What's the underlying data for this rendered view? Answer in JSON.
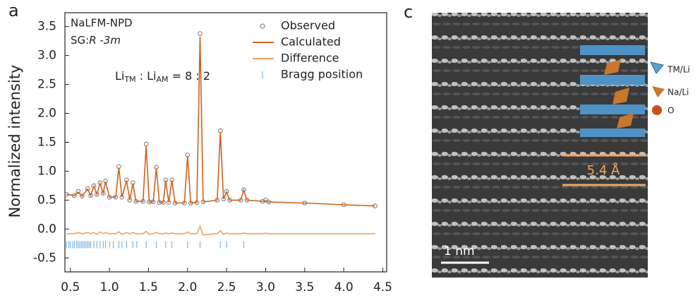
{
  "chart_data": {
    "type": "line",
    "panel_label": "a",
    "annotation_name": "NaLFM-NPD",
    "annotation_sg_prefix": "SG:",
    "annotation_sg": "R -3m",
    "annotation_ratio_parts": [
      "Li",
      "TM",
      " : Li",
      "AM",
      " = 8 : 2"
    ],
    "ylabel": "Normalized intensity",
    "xlim": [
      0.43,
      4.55
    ],
    "ylim": [
      -0.74,
      3.74
    ],
    "xticks": [
      0.5,
      {
        "value": 1,
        "label": "1.0"
      },
      1.5,
      {
        "value": 2,
        "label": "2.0"
      },
      2.5,
      {
        "value": 3,
        "label": "3.0"
      },
      3.5,
      {
        "value": 4,
        "label": "4.0"
      },
      4.5
    ],
    "yticks": [
      -0.5,
      {
        "value": 0,
        "label": "0.0"
      },
      0.5,
      {
        "value": 1,
        "label": "1.0"
      },
      1.5,
      {
        "value": 2,
        "label": "2.0"
      },
      2.5,
      {
        "value": 3,
        "label": "3.0"
      },
      3.5
    ],
    "x": [
      0.45,
      0.55,
      0.6,
      0.65,
      0.72,
      0.76,
      0.8,
      0.84,
      0.88,
      0.92,
      0.95,
      1.0,
      1.08,
      1.12,
      1.16,
      1.22,
      1.26,
      1.3,
      1.34,
      1.43,
      1.47,
      1.51,
      1.56,
      1.6,
      1.64,
      1.69,
      1.72,
      1.76,
      1.8,
      1.84,
      1.96,
      2.0,
      2.04,
      2.12,
      2.16,
      2.2,
      2.38,
      2.42,
      2.46,
      2.5,
      2.54,
      2.68,
      2.72,
      2.76,
      2.96,
      3.0,
      3.04,
      3.5,
      4.0,
      4.4
    ],
    "series": [
      {
        "name": "Observed",
        "color": "#777777",
        "style": "markers",
        "values": [
          0.6,
          0.58,
          0.65,
          0.57,
          0.7,
          0.58,
          0.75,
          0.6,
          0.8,
          0.62,
          0.83,
          0.55,
          0.55,
          1.08,
          0.55,
          0.85,
          0.5,
          0.8,
          0.48,
          0.48,
          1.47,
          0.47,
          0.47,
          1.07,
          0.46,
          0.46,
          0.85,
          0.46,
          0.85,
          0.45,
          0.45,
          1.28,
          0.45,
          0.46,
          3.38,
          0.47,
          0.5,
          1.7,
          0.52,
          0.65,
          0.5,
          0.5,
          0.68,
          0.5,
          0.48,
          0.5,
          0.47,
          0.45,
          0.42,
          0.4
        ]
      },
      {
        "name": "Calculated",
        "color": "#d2601a",
        "style": "line",
        "values": [
          0.6,
          0.58,
          0.64,
          0.57,
          0.69,
          0.58,
          0.74,
          0.6,
          0.79,
          0.62,
          0.82,
          0.55,
          0.55,
          1.06,
          0.55,
          0.84,
          0.5,
          0.79,
          0.48,
          0.48,
          1.44,
          0.47,
          0.47,
          1.05,
          0.46,
          0.46,
          0.84,
          0.46,
          0.84,
          0.45,
          0.45,
          1.26,
          0.45,
          0.46,
          3.33,
          0.47,
          0.5,
          1.68,
          0.52,
          0.64,
          0.5,
          0.5,
          0.67,
          0.5,
          0.48,
          0.49,
          0.47,
          0.45,
          0.42,
          0.4
        ]
      },
      {
        "name": "Difference",
        "color": "#f0a060",
        "style": "line",
        "values": [
          -0.08,
          -0.08,
          -0.06,
          -0.08,
          -0.06,
          -0.08,
          -0.06,
          -0.09,
          -0.05,
          -0.08,
          -0.06,
          -0.08,
          -0.08,
          -0.05,
          -0.09,
          -0.06,
          -0.08,
          -0.06,
          -0.08,
          -0.08,
          -0.04,
          -0.09,
          -0.08,
          -0.06,
          -0.08,
          -0.08,
          -0.07,
          -0.08,
          -0.07,
          -0.08,
          -0.08,
          -0.05,
          -0.08,
          -0.08,
          0.05,
          -0.1,
          -0.08,
          -0.03,
          -0.09,
          -0.07,
          -0.08,
          -0.08,
          -0.07,
          -0.08,
          -0.08,
          -0.07,
          -0.08,
          -0.08,
          -0.08,
          -0.08
        ]
      },
      {
        "name": "Bragg position",
        "color": "#6aa8d8",
        "style": "ticks",
        "value": -0.27,
        "x": [
          0.45,
          0.48,
          0.5,
          0.53,
          0.55,
          0.58,
          0.6,
          0.62,
          0.64,
          0.66,
          0.68,
          0.7,
          0.72,
          0.74,
          0.76,
          0.8,
          0.84,
          0.88,
          0.92,
          0.95,
          1.0,
          1.05,
          1.12,
          1.16,
          1.22,
          1.3,
          1.35,
          1.47,
          1.6,
          1.72,
          1.8,
          2.0,
          2.16,
          2.42,
          2.5,
          2.72
        ]
      }
    ]
  },
  "panel_c": {
    "label": "c",
    "legend": [
      "TM/Li",
      "Na/Li",
      "O"
    ],
    "spacing_label": "5.4 Å",
    "scale_bar": "1 nm"
  }
}
